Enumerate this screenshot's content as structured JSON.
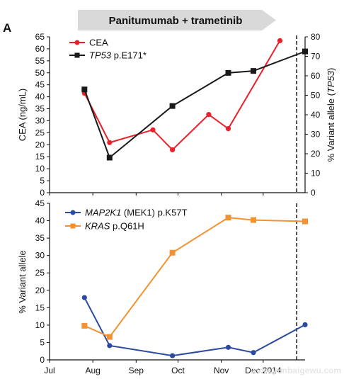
{
  "figure": {
    "panel_label": "A",
    "treatment_label": "Panitumumab + trametinib",
    "watermark": "www.yunbaigewu.com"
  },
  "colors": {
    "cea": "#e8212a",
    "tp53": "#1a1a1a",
    "map2k1": "#2b4aa0",
    "kras": "#f39232",
    "arrow_fill": "#d9d9d9",
    "axis": "#111111"
  },
  "chart_data": [
    {
      "type": "line",
      "x_axis": {
        "ticks": [
          "Jul",
          "Aug",
          "Sep",
          "Oct",
          "Nov",
          "Dec 2014"
        ],
        "range_days": [
          0,
          183
        ]
      },
      "ylabel_left": "CEA (ng/mL)",
      "ylabel_right_prefix": "% Variant allele (",
      "ylabel_right_gene": "TP53",
      "ylabel_right_suffix": ")",
      "ylim_left": [
        0,
        65
      ],
      "yticks_left": [
        0,
        5,
        10,
        15,
        20,
        25,
        30,
        35,
        40,
        45,
        50,
        55,
        60,
        65
      ],
      "ylim_right": [
        0,
        80
      ],
      "yticks_right": [
        0,
        10,
        20,
        30,
        40,
        50,
        60,
        70,
        80
      ],
      "dashed_line_day": 177,
      "legend_position": "top-left",
      "series": [
        {
          "key": "cea",
          "legend_gene": "",
          "legend_rest": "CEA",
          "axis": "left",
          "marker": "circle",
          "x_days": [
            25,
            43,
            74,
            88,
            114,
            128,
            165
          ],
          "values": [
            41.5,
            20.9,
            26.2,
            17.9,
            32.6,
            26.7,
            63.4
          ]
        },
        {
          "key": "tp53",
          "legend_gene": "TP53",
          "legend_rest": " p.E171*",
          "axis": "right",
          "marker": "square",
          "x_days": [
            25,
            43,
            88,
            128,
            146,
            183
          ],
          "values": [
            53,
            18,
            44.5,
            61.5,
            62.5,
            72.5
          ]
        }
      ]
    },
    {
      "type": "line",
      "x_axis": {
        "ticks": [
          "Jul",
          "Aug",
          "Sep",
          "Oct",
          "Nov",
          "Dec 2014"
        ],
        "range_days": [
          0,
          183
        ]
      },
      "ylabel": "% Variant allele",
      "ylim": [
        0,
        45
      ],
      "yticks": [
        0,
        5,
        10,
        15,
        20,
        25,
        30,
        35,
        40,
        45
      ],
      "dashed_line_day": 177,
      "legend_position": "top-left",
      "series": [
        {
          "key": "map2k1",
          "legend_gene": "MAP2K1",
          "legend_rest": " (MEK1) p.K57T",
          "marker": "circle",
          "x_days": [
            25,
            43,
            88,
            128,
            146,
            183
          ],
          "values": [
            17.9,
            4.1,
            1.2,
            3.6,
            2.1,
            10.1
          ]
        },
        {
          "key": "kras",
          "legend_gene": "KRAS",
          "legend_rest": " p.Q61H",
          "marker": "square",
          "x_days": [
            25,
            43,
            88,
            128,
            146,
            183
          ],
          "values": [
            9.8,
            6.6,
            30.8,
            40.9,
            40.2,
            39.8
          ]
        }
      ]
    }
  ]
}
